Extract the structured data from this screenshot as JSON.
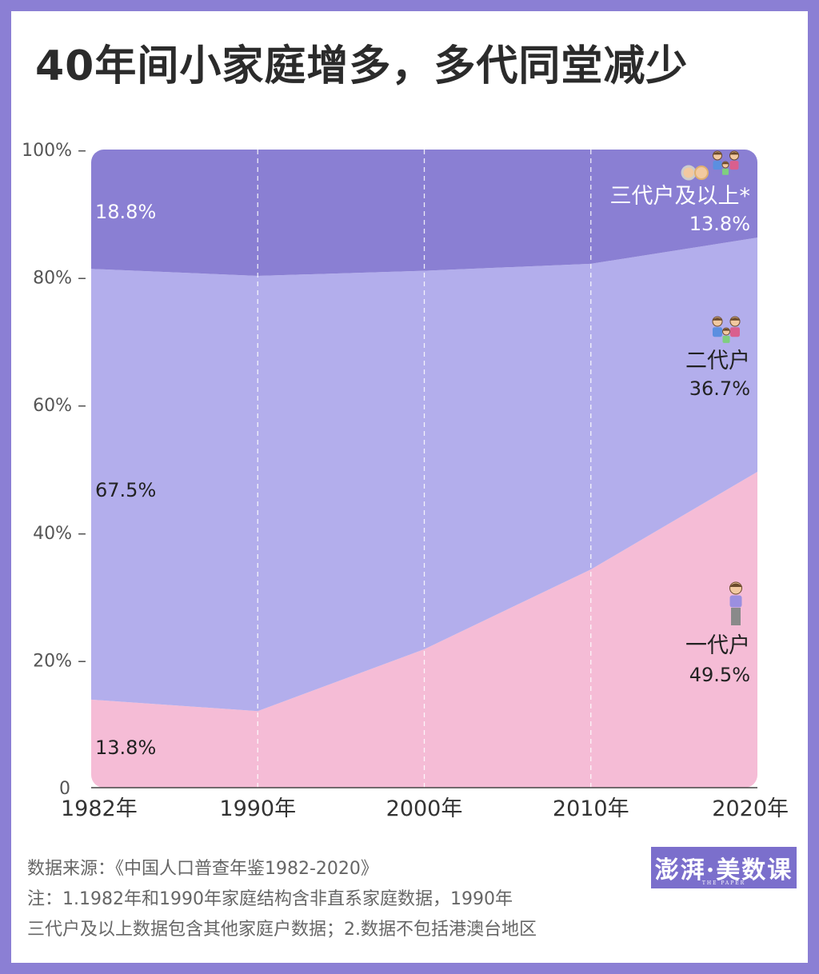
{
  "title": "40年间小家庭增多，多代同堂减少",
  "chart_data": {
    "type": "area",
    "stacked": true,
    "x": [
      "1982年",
      "1990年",
      "2000年",
      "2010年",
      "2020年"
    ],
    "ylim": [
      0,
      100
    ],
    "yticks": [
      "0",
      "20%",
      "40%",
      "60%",
      "80%",
      "100%"
    ],
    "grid": "vertical-dashed",
    "series": [
      {
        "name": "一代户",
        "values": [
          13.8,
          12.0,
          21.7,
          34.2,
          49.5
        ],
        "color": "#f5bcd6",
        "icon": "single-person-icon"
      },
      {
        "name": "二代户",
        "values": [
          67.5,
          68.2,
          59.3,
          47.9,
          36.7
        ],
        "color": "#b3aeec",
        "icon": "couple-with-child-icon"
      },
      {
        "name": "三代户及以上*",
        "values": [
          18.8,
          19.8,
          19.0,
          17.9,
          13.8
        ],
        "color": "#8a7fd3",
        "icon": "three-generation-family-icon"
      }
    ],
    "start_labels": [
      "13.8%",
      "67.5%",
      "18.8%"
    ],
    "end_labels": [
      "49.5%",
      "36.7%",
      "13.8%"
    ]
  },
  "footer": {
    "source": "数据来源：《中国人口普查年鉴1982-2020》",
    "note_line1": "注：1.1982年和1990年家庭结构含非直系家庭数据，1990年",
    "note_line2": "三代户及以上数据包含其他家庭户数据；2.数据不包括港澳台地区"
  },
  "logo": {
    "text": "澎湃·美数课",
    "sub": "THE PAPER"
  }
}
